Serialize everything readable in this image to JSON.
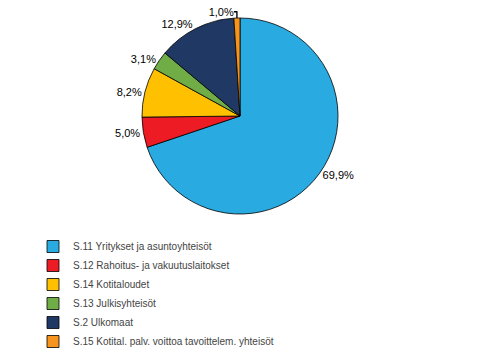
{
  "chart_data": {
    "type": "pie",
    "categories": [
      "S.11 Yritykset ja asuntoyhteisöt",
      "S.12 Rahoitus- ja vakuutuslaitokset",
      "S.14 Kotitaloudet",
      "S.13 Julkisyhteisöt",
      "S.2 Ulkomaat",
      "S.15 Kotital. palv. voittoa tavoittelem. yhteisöt"
    ],
    "values": [
      69.9,
      5.0,
      8.2,
      3.1,
      12.9,
      1.0
    ],
    "value_labels": [
      "69,9%",
      "5,0%",
      "8,2%",
      "3,1%",
      "12,9%",
      "1,0%"
    ],
    "colors": [
      "#29ABE2",
      "#ED1C24",
      "#FFC000",
      "#70AD47",
      "#1F3864",
      "#F7941D"
    ],
    "data_labels": true,
    "legend": "bottom"
  }
}
